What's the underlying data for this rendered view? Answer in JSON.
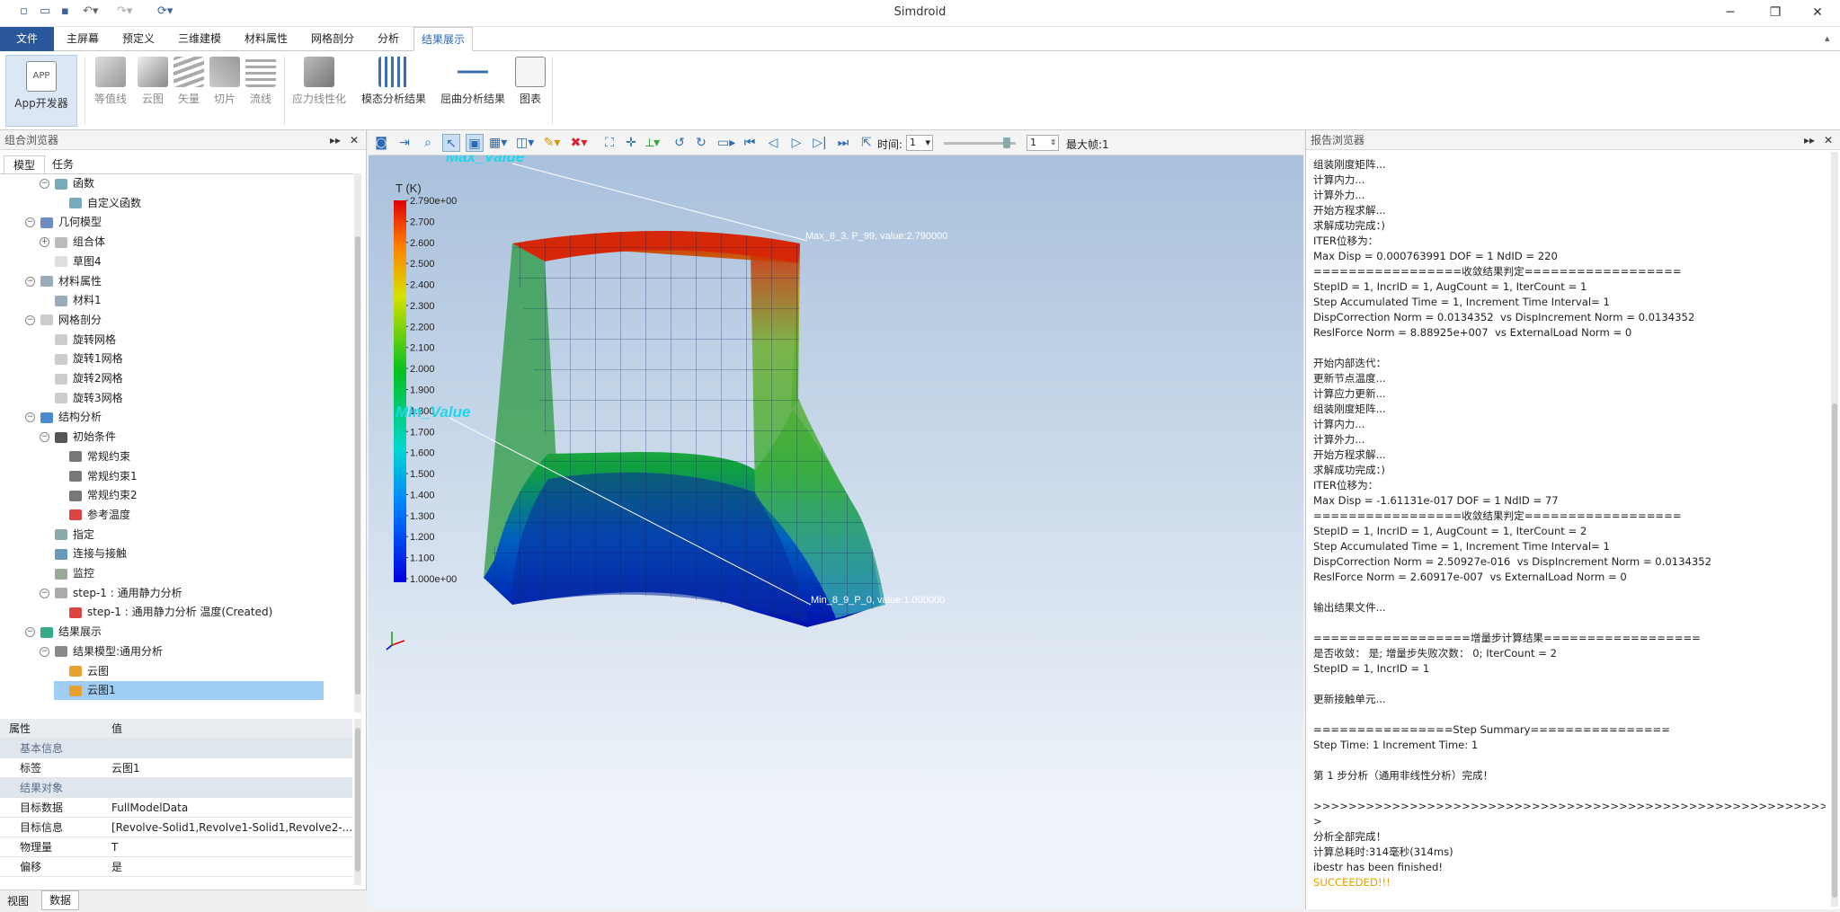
{
  "app": {
    "title": "Simdroid"
  },
  "quick_access": {
    "icons": [
      "new-icon",
      "open-icon",
      "save-icon",
      "undo-icon",
      "redo-icon",
      "refresh-icon"
    ]
  },
  "menu_tabs": [
    "文件",
    "主屏幕",
    "预定义",
    "三维建模",
    "材料属性",
    "网格剖分",
    "分析",
    "结果展示"
  ],
  "ribbon": {
    "app_dev": "App开发器",
    "groups": [
      "等值线",
      "云图",
      "矢量",
      "切片",
      "流线"
    ],
    "stress": "应力线性化",
    "modal": "模态分析结果",
    "buckling": "屈曲分析结果",
    "chart": "图表"
  },
  "left_panel": {
    "title": "组合浏览器",
    "tabs": [
      "模型",
      "任务"
    ],
    "tree": [
      {
        "label": "函数",
        "icon": "function-icon",
        "level": 1,
        "toggle": "−"
      },
      {
        "label": "自定义函数",
        "icon": "function-icon",
        "level": 2
      },
      {
        "label": "几何模型",
        "icon": "geometry-icon",
        "level": 0,
        "toggle": "−"
      },
      {
        "label": "组合体",
        "icon": "assembly-icon",
        "level": 1,
        "toggle": "+"
      },
      {
        "label": "草图4",
        "icon": "sketch-icon",
        "level": 1
      },
      {
        "label": "材料属性",
        "icon": "material-icon",
        "level": 0,
        "toggle": "−"
      },
      {
        "label": "材料1",
        "icon": "material-icon",
        "level": 1
      },
      {
        "label": "网格剖分",
        "icon": "mesh-icon",
        "level": 0,
        "toggle": "−"
      },
      {
        "label": "旋转网格",
        "icon": "mesh-icon",
        "level": 1
      },
      {
        "label": "旋转1网格",
        "icon": "mesh-icon",
        "level": 1
      },
      {
        "label": "旋转2网格",
        "icon": "mesh-icon",
        "level": 1
      },
      {
        "label": "旋转3网格",
        "icon": "mesh-icon",
        "level": 1
      },
      {
        "label": "结构分析",
        "icon": "analysis-icon",
        "level": 0,
        "toggle": "−"
      },
      {
        "label": "初始条件",
        "icon": "condition-icon",
        "level": 1,
        "toggle": "−"
      },
      {
        "label": "常规约束",
        "icon": "constraint-icon",
        "level": 2
      },
      {
        "label": "常规约束1",
        "icon": "constraint-icon",
        "level": 2
      },
      {
        "label": "常规约束2",
        "icon": "constraint-icon",
        "level": 2
      },
      {
        "label": "参考温度",
        "icon": "thermometer-icon",
        "level": 2
      },
      {
        "label": "指定",
        "icon": "assign-icon",
        "level": 1
      },
      {
        "label": "连接与接触",
        "icon": "contact-icon",
        "level": 1
      },
      {
        "label": "监控",
        "icon": "monitor-icon",
        "level": 1
      },
      {
        "label": "step-1 : 通用静力分析",
        "icon": "step-icon",
        "level": 1,
        "toggle": "−"
      },
      {
        "label": "step-1 : 通用静力分析 温度(Created)",
        "icon": "thermometer-icon",
        "level": 2
      },
      {
        "label": "结果展示",
        "icon": "result-icon",
        "level": 0,
        "toggle": "−"
      },
      {
        "label": "结果模型:通用分析",
        "icon": "result-model-icon",
        "level": 1,
        "toggle": "−"
      },
      {
        "label": "云图",
        "icon": "contour-icon",
        "level": 2
      },
      {
        "label": "云图1",
        "icon": "contour-icon",
        "level": 2,
        "selected": true
      }
    ]
  },
  "properties": {
    "headers": [
      "属性",
      "值"
    ],
    "rows": [
      {
        "group": "基本信息"
      },
      {
        "k": "标签",
        "v": "云图1"
      },
      {
        "group": "结果对象"
      },
      {
        "k": "目标数据",
        "v": "FullModelData"
      },
      {
        "k": "目标信息",
        "v": "[Revolve-Solid1,Revolve1-Solid1,Revolve2-..."
      },
      {
        "k": "物理量",
        "v": "T"
      },
      {
        "k": "偏移",
        "v": "是"
      }
    ],
    "bottom_tabs": [
      "视图",
      "数据"
    ]
  },
  "viewport": {
    "time_label": "时间:",
    "time_value": "1",
    "frame_value": "1",
    "max_frame": "最大帧:1",
    "legend": {
      "title": "T (K)",
      "labels": [
        "2.790e+00",
        "2.700",
        "2.600",
        "2.500",
        "2.400",
        "2.300",
        "2.200",
        "2.100",
        "2.000",
        "1.900",
        "1.800",
        "1.700",
        "1.600",
        "1.500",
        "1.400",
        "1.300",
        "1.200",
        "1.100",
        "1.000e+00"
      ]
    },
    "max_label": "Max_Value",
    "max_annotation": "Max_8_3, P_99, value:2.790000",
    "min_label": "Min_Value",
    "min_annotation": "Min_8_9_P_0, value:1.000000"
  },
  "report": {
    "title": "报告浏览器",
    "lines": [
      "组装刚度矩阵...",
      "计算内力...",
      "计算外力...",
      "开始方程求解...",
      "求解成功完成：)",
      "ITER位移为：",
      "Max Disp = 0.000763991 DOF = 1 NdID = 220",
      "=================收敛结果判定==================",
      "StepID = 1, IncrID = 1, AugCount = 1, IterCount = 1",
      "Step Accumulated Time = 1, Increment Time Interval= 1",
      "DispCorrection Norm = 0.0134352  vs DispIncrement Norm = 0.0134352",
      "ReslForce Norm = 8.88925e+007  vs ExternalLoad Norm = 0",
      "",
      "开始内部迭代：",
      "更新节点温度...",
      "计算应力更新...",
      "组装刚度矩阵...",
      "计算内力...",
      "计算外力...",
      "开始方程求解...",
      "求解成功完成：)",
      "ITER位移为：",
      "Max Disp = -1.61131e-017 DOF = 1 NdID = 77",
      "=================收敛结果判定==================",
      "StepID = 1, IncrID = 1, AugCount = 1, IterCount = 2",
      "Step Accumulated Time = 1, Increment Time Interval= 1",
      "DispCorrection Norm = 2.50927e-016  vs DispIncrement Norm = 0.0134352",
      "ReslForce Norm = 2.60917e-007  vs ExternalLoad Norm = 0",
      "",
      "输出结果文件...",
      "",
      "==================增量步计算结果==================",
      "是否收敛： 是; 增量步失败次数： 0; IterCount = 2",
      "StepID = 1, IncrID = 1",
      "",
      "更新接触单元...",
      "",
      "================Step Summary================",
      "Step Time: 1 Increment Time: 1",
      "",
      "第 1 步分析（通用非线性分析）完成！",
      "",
      ">>>>>>>>>>>>>>>>>>>>>>>>>>>>>>>>>>>>>>>>>>>>>>>>>>>>>>>>>>>>>",
      ">",
      "分析全部完成！",
      "计算总耗时:314毫秒(314ms)",
      "ibestr has been finished!",
      "SUCCEEDED!!!"
    ],
    "success_color": "#e8a000"
  },
  "colors": {
    "accent": "#2a579a",
    "selected": "#9fcdf4",
    "annotation": "#1fd6e8"
  }
}
